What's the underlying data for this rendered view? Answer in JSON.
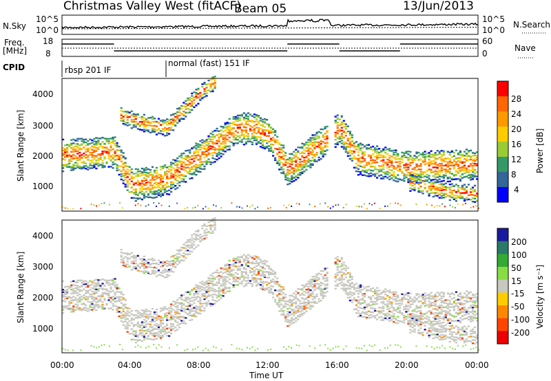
{
  "header": {
    "station": "Christmas Valley West (fitACF)",
    "beam": "Beam 05",
    "date": "13/Jun/2013"
  },
  "strips": {
    "nsky_label": "N.Sky",
    "nsky_ticks": [
      "10^5",
      "10^0"
    ],
    "nsearch_label": "N.Search",
    "nsearch_ticks": [
      "10^5",
      "10^0"
    ],
    "freq_label": "Freq.",
    "freq_unit": "[MHz]",
    "freq_ticks": [
      "18",
      "8"
    ],
    "nave_label": "Nave",
    "nave_ticks": [
      "60",
      "0"
    ],
    "cpid_label": "CPID",
    "cpid_modes": [
      {
        "name": "rbsp 201 IF",
        "start": "00:00"
      },
      {
        "name": "normal (fast) 151 IF",
        "start": "06:00"
      }
    ]
  },
  "panels": {
    "ylabel": "Slant Range [km]",
    "xlabel": "Time UT",
    "y_ticks": [
      "4000",
      "3000",
      "2000",
      "1000"
    ],
    "x_ticks": [
      "00:00",
      "04:00",
      "08:00",
      "12:00",
      "16:00",
      "20:00",
      "00:00"
    ]
  },
  "colorbars": {
    "power": {
      "label": "Power [dB]",
      "ticks": [
        "28",
        "24",
        "20",
        "16",
        "12",
        "8",
        "4"
      ],
      "colors": [
        "#ff0000",
        "#ff6600",
        "#ff9900",
        "#ffcc00",
        "#99cc33",
        "#339966",
        "#336699",
        "#0000ff"
      ]
    },
    "velocity": {
      "label": "Velocity [m s⁻¹]",
      "ticks": [
        "200",
        "100",
        "50",
        "15",
        "-15",
        "-50",
        "-100",
        "-200"
      ],
      "colors": [
        "#1a1aa0",
        "#2a7a6a",
        "#33aa33",
        "#88dd44",
        "#c8c8c0",
        "#ffcc00",
        "#ff8800",
        "#ff4400",
        "#ee0000"
      ]
    }
  },
  "chart_data": {
    "type": "heatmap",
    "title": "Christmas Valley West (fitACF)",
    "xlabel": "Time UT",
    "ylabel": "Slant Range [km]",
    "x_range": [
      "00:00",
      "24:00"
    ],
    "ylim": [
      200,
      4600
    ],
    "backscatter_bands": [
      {
        "name": "main band",
        "points": [
          [
            0,
            2100
          ],
          [
            3,
            2200
          ],
          [
            4,
            1100
          ],
          [
            6,
            1300
          ],
          [
            8,
            2100
          ],
          [
            10,
            2950
          ],
          [
            11,
            3000
          ],
          [
            12,
            2700
          ],
          [
            13,
            1600
          ],
          [
            16,
            3000
          ],
          [
            17,
            2000
          ],
          [
            19,
            1800
          ],
          [
            20,
            1700
          ],
          [
            24,
            1800
          ]
        ]
      },
      {
        "name": "lower band",
        "points": [
          [
            20,
            1200
          ],
          [
            22,
            900
          ],
          [
            24,
            800
          ]
        ]
      },
      {
        "name": "upper arc",
        "points": [
          [
            3.3,
            3400
          ],
          [
            5,
            3100
          ],
          [
            6,
            3000
          ],
          [
            8,
            4200
          ],
          [
            8.8,
            4500
          ]
        ]
      }
    ],
    "power": {
      "unit": "dB",
      "ticks": [
        4,
        8,
        12,
        16,
        20,
        24,
        28
      ]
    },
    "velocity": {
      "unit": "m s-1",
      "ticks": [
        -200,
        -100,
        -50,
        -15,
        15,
        50,
        100,
        200
      ]
    }
  }
}
